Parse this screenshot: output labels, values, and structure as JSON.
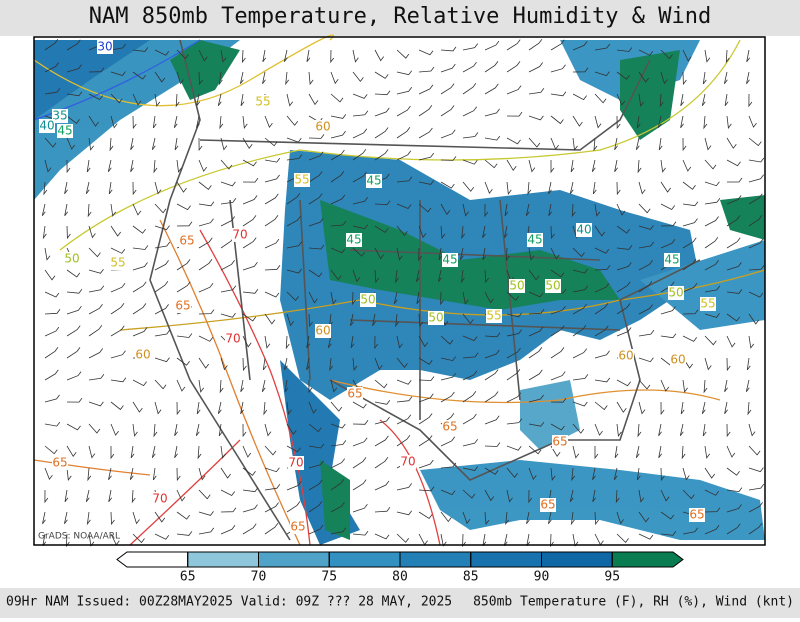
{
  "header": {
    "title": "NAM 850mb Temperature, Relative Humidity & Wind"
  },
  "map": {
    "credit": "GrADS: NOAA/ARL",
    "contour_labels": [
      "30",
      "35",
      "40",
      "45",
      "55",
      "60",
      "65",
      "70",
      "65",
      "70",
      "70",
      "70",
      "70",
      "65",
      "60",
      "50",
      "55",
      "45",
      "45",
      "45",
      "40",
      "45",
      "50",
      "50",
      "55",
      "55",
      "50",
      "60",
      "60",
      "65",
      "65",
      "65",
      "65",
      "65",
      "65",
      "60",
      "55",
      "45",
      "50",
      "50"
    ]
  },
  "colorbar": {
    "ticks": [
      65,
      70,
      75,
      80,
      85,
      90,
      95
    ],
    "colors": [
      "#ffffff",
      "#8ec6dc",
      "#4fa3c8",
      "#3291c0",
      "#2380b6",
      "#1872ad",
      "#0f67a6",
      "#0a7c52"
    ]
  },
  "footer": {
    "left": "09Hr NAM Issued: 00Z28MAY2025 Valid: 09Z ??? 28 MAY, 2025",
    "right": "850mb Temperature (F), RH (%), Wind (knt)"
  }
}
